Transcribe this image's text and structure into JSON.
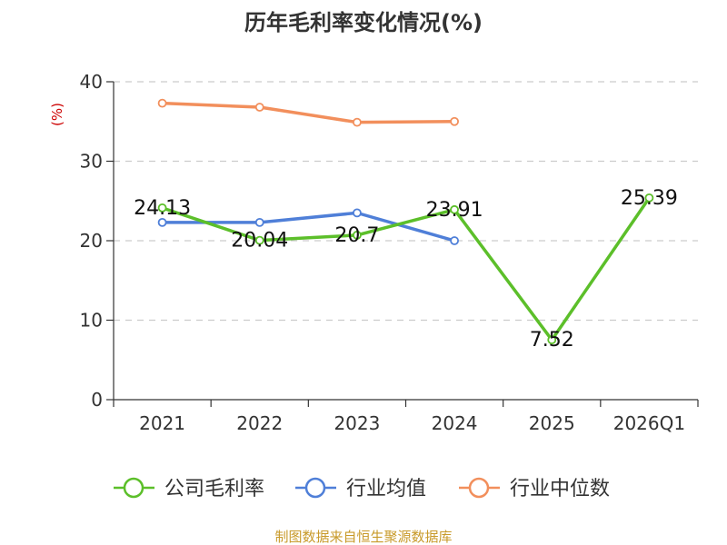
{
  "chart_data": {
    "type": "line",
    "title": "历年毛利率变化情况(%)",
    "unit_label": "(%)",
    "categories": [
      "2021",
      "2022",
      "2023",
      "2024",
      "2025",
      "2026Q1"
    ],
    "ylim": [
      0,
      40
    ],
    "yticks": [
      0,
      10,
      20,
      30,
      40
    ],
    "grid": true,
    "legend_position": "bottom",
    "series": [
      {
        "name": "公司毛利率",
        "color": "#5cbf2a",
        "values": [
          24.13,
          20.04,
          20.7,
          23.91,
          7.52,
          25.39
        ],
        "labels": [
          "24.13",
          "20.04",
          "20.7",
          "23.91",
          "7.52",
          "25.39"
        ]
      },
      {
        "name": "行业均值",
        "color": "#4f7fd8",
        "values": [
          22.3,
          22.3,
          23.5,
          20.0,
          null,
          null
        ]
      },
      {
        "name": "行业中位数",
        "color": "#f28f5c",
        "values": [
          37.3,
          36.8,
          34.9,
          35.0,
          null,
          null
        ]
      }
    ]
  },
  "footer": {
    "source": "制图数据来自恒生聚源数据库"
  }
}
